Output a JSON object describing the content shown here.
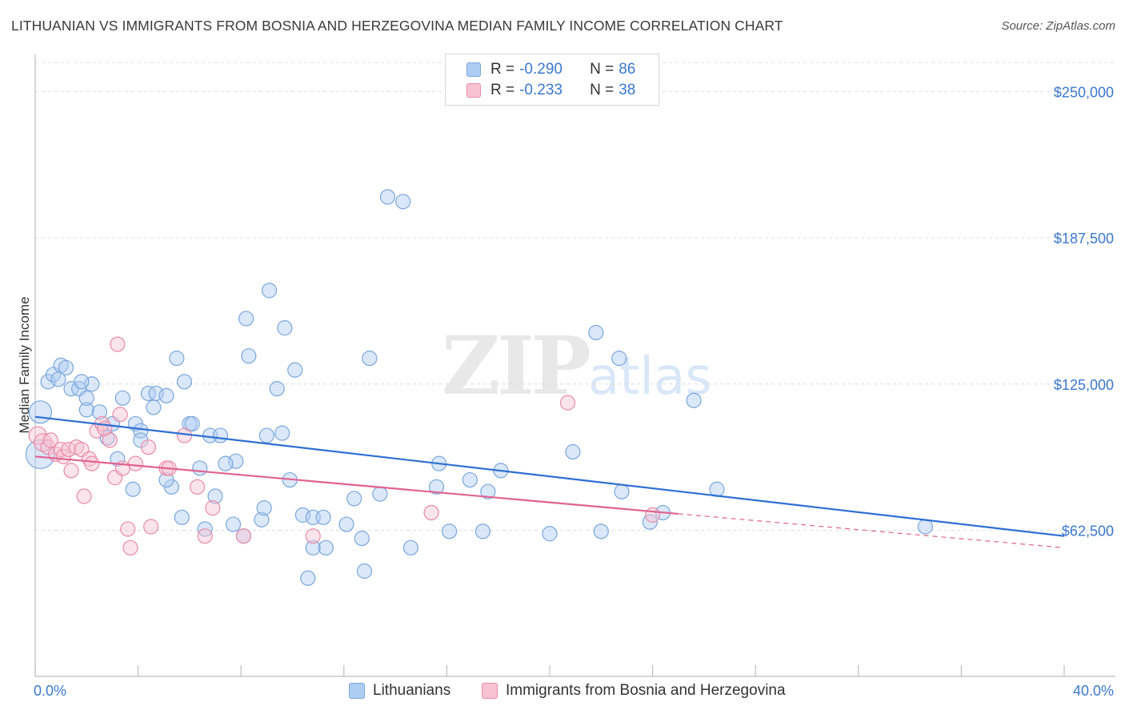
{
  "header": {
    "title": "LITHUANIAN VS IMMIGRANTS FROM BOSNIA AND HERZEGOVINA MEDIAN FAMILY INCOME CORRELATION CHART",
    "source": "Source: ZipAtlas.com"
  },
  "watermark": {
    "zip": "ZIP",
    "atlas": "atlas"
  },
  "legend": {
    "rows": [
      {
        "r_label": "R =",
        "r_value": "-0.290",
        "n_label": "N =",
        "n_value": "86",
        "color": "#aecdf2",
        "border": "#7aa6dc"
      },
      {
        "r_label": "R =",
        "r_value": "-0.233",
        "n_label": "N =",
        "n_value": "38",
        "color": "#f7c3d3",
        "border": "#e88aa8"
      }
    ]
  },
  "bottom_legend": {
    "items": [
      {
        "label": "Lithuanians",
        "color": "#aecdf2",
        "border": "#7aa6dc"
      },
      {
        "label": "Immigrants from Bosnia and Herzegovina",
        "color": "#f7c3d3",
        "border": "#e88aa8"
      }
    ]
  },
  "chart_data": {
    "type": "scatter",
    "title": "LITHUANIAN VS IMMIGRANTS FROM BOSNIA AND HERZEGOVINA MEDIAN FAMILY INCOME CORRELATION CHART",
    "xlabel": "",
    "ylabel": "Median Family Income",
    "x_tick_labels": {
      "min": "0.0%",
      "max": "40.0%"
    },
    "xlim": [
      0,
      40
    ],
    "ylim": [
      0,
      262500
    ],
    "y_ticks": [
      62500,
      125000,
      187500,
      250000
    ],
    "y_tick_labels": [
      "$62,500",
      "$125,000",
      "$187,500",
      "$250,000"
    ],
    "grid": "horizontal dashed",
    "legend_position": "top-center",
    "series": [
      {
        "name": "Lithuanians",
        "color": "#aecdf2",
        "stroke": "#7aa6dc",
        "trend": {
          "x": [
            0,
            40
          ],
          "y": [
            111000,
            60000
          ],
          "color": "#2f6fd4"
        },
        "points": [
          [
            0.2,
            113000,
            14
          ],
          [
            0.2,
            95000,
            18
          ],
          [
            0.5,
            126000,
            9
          ],
          [
            0.7,
            129000,
            9
          ],
          [
            1.0,
            133000,
            9
          ],
          [
            1.2,
            132000,
            9
          ],
          [
            0.9,
            127000,
            9
          ],
          [
            1.4,
            123000,
            9
          ],
          [
            1.7,
            123000,
            9
          ],
          [
            2.2,
            125000,
            9
          ],
          [
            1.8,
            126000,
            9
          ],
          [
            2.0,
            114000,
            9
          ],
          [
            2.5,
            113000,
            9
          ],
          [
            2.0,
            119000,
            9
          ],
          [
            3.0,
            108000,
            9
          ],
          [
            2.8,
            102000,
            9
          ],
          [
            3.4,
            119000,
            9
          ],
          [
            3.9,
            108000,
            9
          ],
          [
            4.1,
            105000,
            9
          ],
          [
            4.4,
            121000,
            9
          ],
          [
            4.6,
            115000,
            9
          ],
          [
            4.7,
            121000,
            9
          ],
          [
            5.1,
            120000,
            9
          ],
          [
            5.5,
            136000,
            9
          ],
          [
            5.8,
            126000,
            9
          ],
          [
            6.0,
            108000,
            9
          ],
          [
            6.1,
            108000,
            9
          ],
          [
            6.8,
            103000,
            9
          ],
          [
            7.2,
            103000,
            9
          ],
          [
            7.8,
            92000,
            9
          ],
          [
            7.4,
            91000,
            9
          ],
          [
            6.4,
            89000,
            9
          ],
          [
            8.2,
            153000,
            9
          ],
          [
            8.3,
            137000,
            9
          ],
          [
            9.0,
            103000,
            9
          ],
          [
            9.1,
            165000,
            9
          ],
          [
            9.4,
            123000,
            9
          ],
          [
            9.6,
            104000,
            9
          ],
          [
            9.7,
            149000,
            9
          ],
          [
            10.1,
            131000,
            9
          ],
          [
            3.2,
            93000,
            9
          ],
          [
            3.8,
            80000,
            9
          ],
          [
            4.1,
            101000,
            9
          ],
          [
            5.3,
            81000,
            9
          ],
          [
            5.1,
            84000,
            9
          ],
          [
            5.7,
            68000,
            9
          ],
          [
            6.6,
            63000,
            9
          ],
          [
            7.0,
            77000,
            9
          ],
          [
            7.7,
            65000,
            9
          ],
          [
            8.1,
            60000,
            9
          ],
          [
            8.8,
            67000,
            9
          ],
          [
            8.9,
            72000,
            9
          ],
          [
            9.9,
            84000,
            9
          ],
          [
            10.4,
            69000,
            9
          ],
          [
            10.8,
            68000,
            9
          ],
          [
            11.2,
            68000,
            9
          ],
          [
            10.8,
            55000,
            9
          ],
          [
            11.3,
            55000,
            9
          ],
          [
            10.6,
            42000,
            9
          ],
          [
            12.1,
            65000,
            9
          ],
          [
            12.4,
            76000,
            9
          ],
          [
            12.7,
            59000,
            9
          ],
          [
            12.8,
            45000,
            9
          ],
          [
            13.0,
            136000,
            9
          ],
          [
            13.4,
            78000,
            9
          ],
          [
            13.7,
            205000,
            9
          ],
          [
            14.3,
            203000,
            9
          ],
          [
            14.6,
            55000,
            9
          ],
          [
            15.6,
            81000,
            9
          ],
          [
            15.7,
            91000,
            9
          ],
          [
            16.1,
            62000,
            9
          ],
          [
            16.9,
            84000,
            9
          ],
          [
            17.4,
            62000,
            9
          ],
          [
            17.6,
            79000,
            9
          ],
          [
            18.1,
            88000,
            9
          ],
          [
            20.0,
            61000,
            9
          ],
          [
            20.9,
            96000,
            9
          ],
          [
            21.8,
            147000,
            9
          ],
          [
            22.0,
            62000,
            9
          ],
          [
            22.7,
            136000,
            9
          ],
          [
            22.8,
            79000,
            9
          ],
          [
            23.9,
            66000,
            9
          ],
          [
            24.4,
            70000,
            9
          ],
          [
            25.6,
            118000,
            9
          ],
          [
            26.5,
            80000,
            9
          ],
          [
            34.6,
            64000,
            9
          ]
        ]
      },
      {
        "name": "Immigrants from Bosnia and Herzegovina",
        "color": "#f7c3d3",
        "stroke": "#e88aa8",
        "trend": {
          "x": [
            0,
            25
          ],
          "y": [
            94000,
            69500
          ],
          "dash_to": [
            40,
            55000
          ],
          "color": "#e0628f"
        },
        "points": [
          [
            0.1,
            103000,
            11
          ],
          [
            0.3,
            100000,
            11
          ],
          [
            0.5,
            98000,
            9
          ],
          [
            0.6,
            101000,
            9
          ],
          [
            0.8,
            95000,
            9
          ],
          [
            1.0,
            97000,
            9
          ],
          [
            1.1,
            94000,
            9
          ],
          [
            1.3,
            97000,
            9
          ],
          [
            1.4,
            88000,
            9
          ],
          [
            1.6,
            98000,
            9
          ],
          [
            1.8,
            97000,
            9
          ],
          [
            1.9,
            77000,
            9
          ],
          [
            2.1,
            93000,
            9
          ],
          [
            2.2,
            91000,
            9
          ],
          [
            2.4,
            105000,
            9
          ],
          [
            2.6,
            108000,
            9
          ],
          [
            2.7,
            106000,
            9
          ],
          [
            2.9,
            101000,
            9
          ],
          [
            3.1,
            85000,
            9
          ],
          [
            3.2,
            142000,
            9
          ],
          [
            3.3,
            112000,
            9
          ],
          [
            3.4,
            89000,
            9
          ],
          [
            3.6,
            63000,
            9
          ],
          [
            3.7,
            55000,
            9
          ],
          [
            3.9,
            91000,
            9
          ],
          [
            4.4,
            98000,
            9
          ],
          [
            4.5,
            64000,
            9
          ],
          [
            5.1,
            89000,
            9
          ],
          [
            5.2,
            89000,
            9
          ],
          [
            5.8,
            103000,
            9
          ],
          [
            6.3,
            81000,
            9
          ],
          [
            6.6,
            60000,
            9
          ],
          [
            6.9,
            72000,
            9
          ],
          [
            8.1,
            60000,
            9
          ],
          [
            10.8,
            60000,
            9
          ],
          [
            15.4,
            70000,
            9
          ],
          [
            20.7,
            117000,
            9
          ],
          [
            24.0,
            69000,
            9
          ]
        ]
      }
    ]
  }
}
